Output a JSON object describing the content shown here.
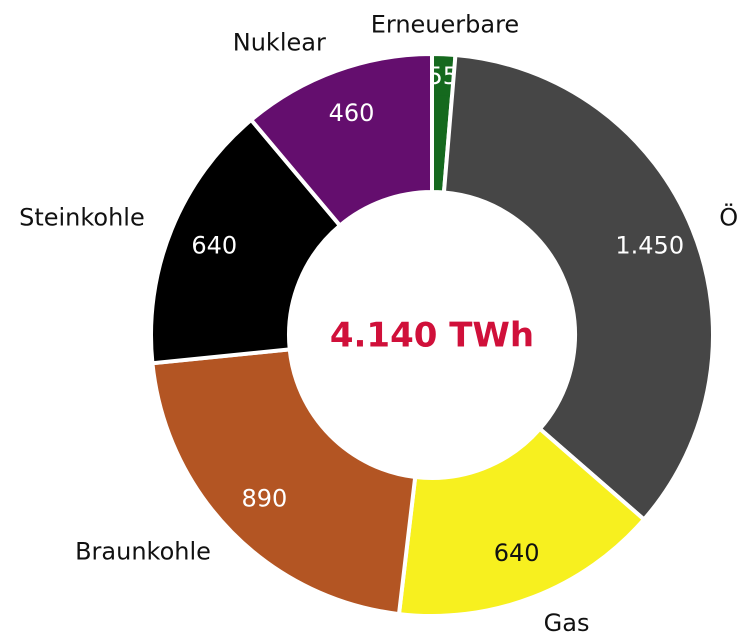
{
  "chart_data": {
    "type": "donut",
    "categories": [
      "Erneuerbare",
      "Öl",
      "Gas",
      "Braunkohle",
      "Steinkohle",
      "Nuklear"
    ],
    "values": [
      55,
      1450,
      640,
      890,
      640,
      460
    ],
    "value_labels": [
      "55",
      "1.450",
      "640",
      "890",
      "640",
      "460"
    ],
    "colors": [
      "#15691e",
      "#464646",
      "#f7f01f",
      "#b35523",
      "#000000",
      "#640e6e"
    ],
    "center_label": "4.140 TWh"
  }
}
